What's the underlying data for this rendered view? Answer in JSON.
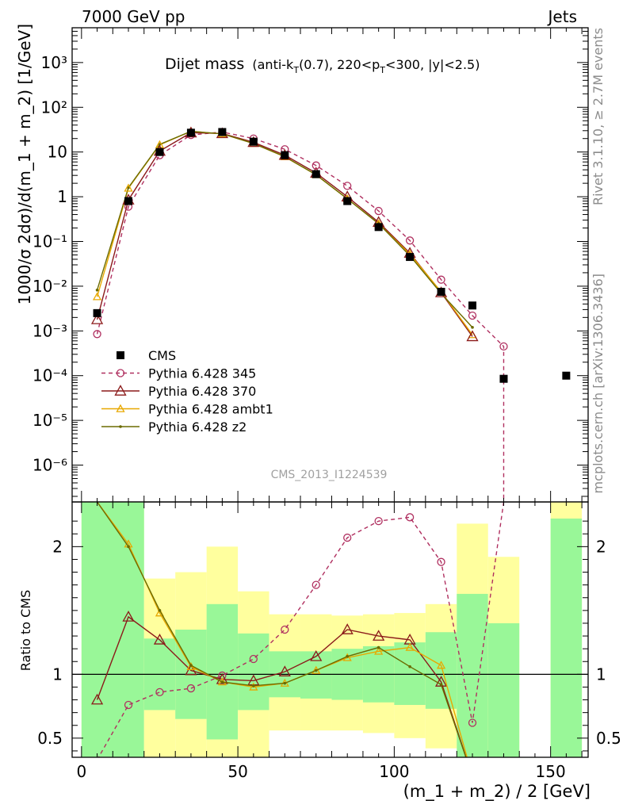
{
  "header": {
    "left": "7000 GeV pp",
    "right": "Jets"
  },
  "title": {
    "main": "Dijet mass",
    "cond_open": "(anti-k",
    "cond_t_sub": "T",
    "cond_mid": "(0.7), 220<p",
    "cond_t_sub2": "T",
    "cond_close": "<300, |y|<2.5)"
  },
  "watermark": "CMS_2013_I1224539",
  "side_labels": {
    "rivet": "Rivet 3.1.10, ≥ 2.7M events",
    "mcplots": "mcplots.cern.ch [arXiv:1306.3436]"
  },
  "chart_data": [
    {
      "type": "scatter",
      "panel": "main",
      "ylabel": "1000/σ 2dσ)/d(m_1 + m_2) [1/GeV]",
      "yscale": "log",
      "ylim": [
        1.5e-07,
        6000
      ],
      "xlim": [
        -3,
        162
      ],
      "ytick_labels": [
        "10⁻⁶",
        "10⁻⁵",
        "10⁻⁴",
        "10⁻³",
        "10⁻²",
        "10⁻¹",
        "1",
        "10",
        "10²",
        "10³"
      ],
      "legend_position": "lower-left",
      "series": [
        {
          "name": "CMS",
          "color": "#000000",
          "marker": "square",
          "x": [
            5,
            15,
            25,
            35,
            45,
            55,
            65,
            75,
            85,
            95,
            105,
            115,
            125,
            135,
            155
          ],
          "y": [
            0.0025,
            0.8,
            10,
            27,
            28,
            17,
            8.5,
            3.2,
            0.8,
            0.21,
            0.045,
            0.0075,
            0.0037,
            8.5e-05,
            0.0001
          ]
        },
        {
          "name": "Pythia 6.428 345",
          "color": "#b03060",
          "marker": "open-circle",
          "line": "dashed",
          "x": [
            5,
            15,
            25,
            35,
            45,
            55,
            65,
            75,
            85,
            95,
            105,
            115,
            125,
            135
          ],
          "y": [
            0.00085,
            0.6,
            8.5,
            24,
            28,
            20,
            11.5,
            5,
            1.75,
            0.48,
            0.105,
            0.014,
            0.0022,
            0.00045
          ]
        },
        {
          "name": "Pythia 6.428 370",
          "color": "#8b1a1a",
          "marker": "open-triangle",
          "line": "solid",
          "x": [
            5,
            15,
            25,
            35,
            45,
            55,
            65,
            75,
            85,
            95,
            105,
            115,
            125
          ],
          "y": [
            0.0018,
            0.85,
            10.5,
            27,
            26,
            16.5,
            8.5,
            3.4,
            1.0,
            0.27,
            0.055,
            0.0072,
            0.00075
          ]
        },
        {
          "name": "Pythia 6.428 ambt1",
          "color": "#e8a800",
          "marker": "open-triangle-small",
          "line": "solid",
          "x": [
            5,
            15,
            25,
            35,
            45,
            55,
            65,
            75,
            85,
            95,
            105,
            115,
            125
          ],
          "y": [
            0.0058,
            1.55,
            14.5,
            29,
            25.5,
            15.5,
            7.8,
            3.1,
            0.9,
            0.25,
            0.052,
            0.0075,
            0.00082
          ]
        },
        {
          "name": "Pythia 6.428 z2",
          "color": "#6b6b00",
          "marker": "dot",
          "line": "solid",
          "x": [
            5,
            15,
            25,
            35,
            45,
            55,
            65,
            75,
            85,
            95,
            105,
            115,
            125
          ],
          "y": [
            0.0082,
            1.6,
            14.8,
            29,
            25.5,
            15.5,
            7.9,
            3.1,
            0.9,
            0.25,
            0.048,
            0.0069,
            0.0012
          ]
        }
      ]
    },
    {
      "type": "line",
      "panel": "ratio",
      "ylabel": "Ratio to CMS",
      "xlabel": "(m_1 + m_2) / 2 [GeV]",
      "ylim": [
        0.35,
        2.35
      ],
      "xlim": [
        -3,
        162
      ],
      "xticks": [
        0,
        50,
        100,
        150
      ],
      "yticks": [
        0.5,
        1,
        2
      ],
      "bands": [
        {
          "x0": 0,
          "x1": 20,
          "stat": [
            0.35,
            2.35
          ],
          "tot": [
            0.35,
            2.35
          ]
        },
        {
          "x0": 20,
          "x1": 30,
          "stat": [
            0.72,
            1.28
          ],
          "tot": [
            0.35,
            1.75
          ]
        },
        {
          "x0": 30,
          "x1": 40,
          "stat": [
            0.65,
            1.35
          ],
          "tot": [
            0.35,
            1.8
          ]
        },
        {
          "x0": 40,
          "x1": 50,
          "stat": [
            0.49,
            1.55
          ],
          "tot": [
            0.35,
            2.0
          ]
        },
        {
          "x0": 50,
          "x1": 60,
          "stat": [
            0.72,
            1.32
          ],
          "tot": [
            0.35,
            1.65
          ]
        },
        {
          "x0": 60,
          "x1": 70,
          "stat": [
            0.82,
            1.18
          ],
          "tot": [
            0.56,
            1.47
          ]
        },
        {
          "x0": 70,
          "x1": 80,
          "stat": [
            0.81,
            1.18
          ],
          "tot": [
            0.56,
            1.47
          ]
        },
        {
          "x0": 80,
          "x1": 90,
          "stat": [
            0.8,
            1.2
          ],
          "tot": [
            0.56,
            1.46
          ]
        },
        {
          "x0": 90,
          "x1": 100,
          "stat": [
            0.78,
            1.22
          ],
          "tot": [
            0.54,
            1.47
          ]
        },
        {
          "x0": 100,
          "x1": 110,
          "stat": [
            0.76,
            1.25
          ],
          "tot": [
            0.5,
            1.48
          ]
        },
        {
          "x0": 110,
          "x1": 120,
          "stat": [
            0.73,
            1.33
          ],
          "tot": [
            0.42,
            1.55
          ]
        },
        {
          "x0": 120,
          "x1": 130,
          "stat": [
            0.35,
            1.63
          ],
          "tot": [
            0.35,
            2.18
          ]
        },
        {
          "x0": 130,
          "x1": 140,
          "stat": [
            0.35,
            1.4
          ],
          "tot": [
            0.35,
            1.92
          ]
        },
        {
          "x0": 150,
          "x1": 160,
          "stat": [
            0.35,
            2.22
          ],
          "tot": [
            0.35,
            2.35
          ]
        }
      ],
      "series": [
        {
          "name": "Pythia 6.428 345",
          "color": "#b03060",
          "x": [
            5,
            15,
            25,
            35,
            45,
            55,
            65,
            75,
            85,
            95,
            105,
            115,
            125,
            135
          ],
          "y": [
            0.33,
            0.76,
            0.86,
            0.89,
            0.99,
            1.12,
            1.35,
            1.7,
            2.07,
            2.2,
            2.23,
            1.88,
            0.62,
            2.35
          ]
        },
        {
          "name": "Pythia 6.428 370",
          "color": "#8b1a1a",
          "x": [
            5,
            15,
            25,
            35,
            45,
            55,
            65,
            75,
            85,
            95,
            105,
            115,
            125
          ],
          "y": [
            0.8,
            1.45,
            1.27,
            1.03,
            0.96,
            0.95,
            1.02,
            1.14,
            1.35,
            1.3,
            1.27,
            0.94,
            0.2
          ]
        },
        {
          "name": "Pythia 6.428 ambt1",
          "color": "#e8a800",
          "x": [
            5,
            15,
            25,
            35,
            45,
            55,
            65,
            75,
            85,
            95,
            105,
            115,
            125
          ],
          "y": [
            2.35,
            2.02,
            1.48,
            1.06,
            0.94,
            0.9,
            0.93,
            1.03,
            1.13,
            1.18,
            1.21,
            1.07,
            0.2
          ]
        },
        {
          "name": "Pythia 6.428 z2",
          "color": "#6b6b00",
          "x": [
            5,
            15,
            25,
            35,
            45,
            55,
            65,
            75,
            85,
            95,
            105,
            115,
            125
          ],
          "y": [
            2.35,
            2.0,
            1.5,
            1.07,
            0.94,
            0.91,
            0.93,
            1.03,
            1.14,
            1.21,
            1.06,
            0.92,
            0.2
          ]
        }
      ]
    }
  ]
}
